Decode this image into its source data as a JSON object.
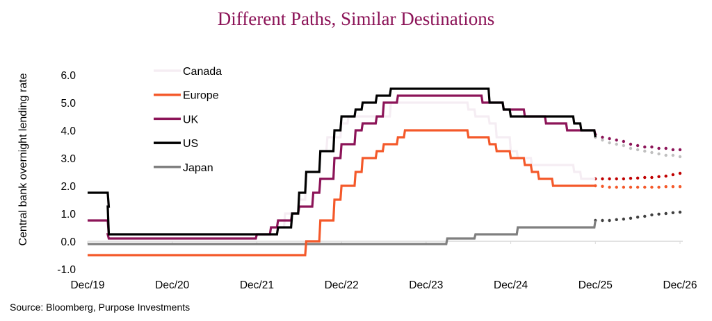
{
  "chart_data": {
    "type": "line",
    "title": "Different Paths, Similar Destinations",
    "ylabel": "Central bank overnight lending rate",
    "xlabel": "",
    "ylim": [
      -1.0,
      6.0
    ],
    "yticks": [
      "6.0",
      "5.0",
      "4.0",
      "3.0",
      "2.0",
      "1.0",
      "0.0",
      "-1.0"
    ],
    "xticks": [
      "Dec/19",
      "Dec/20",
      "Dec/21",
      "Dec/22",
      "Dec/23",
      "Dec/24",
      "Dec/25",
      "Dec/26"
    ],
    "xrange": [
      "2019-12",
      "2026-12"
    ],
    "grid": false,
    "legend_position": "top-left",
    "series": [
      {
        "name": "Canada",
        "color": "#f5edf3",
        "style": "step",
        "points": [
          [
            "2019-12",
            1.75
          ],
          [
            "2020-03",
            0.25
          ],
          [
            "2022-03",
            0.5
          ],
          [
            "2022-04",
            1.0
          ],
          [
            "2022-06",
            1.5
          ],
          [
            "2022-07",
            2.5
          ],
          [
            "2022-09",
            3.25
          ],
          [
            "2022-10",
            3.75
          ],
          [
            "2022-12",
            4.25
          ],
          [
            "2023-01",
            4.5
          ],
          [
            "2023-07",
            5.0
          ],
          [
            "2024-06",
            4.75
          ],
          [
            "2024-07",
            4.5
          ],
          [
            "2024-09",
            4.25
          ],
          [
            "2024-10",
            3.75
          ],
          [
            "2024-12",
            3.25
          ],
          [
            "2025-01",
            3.0
          ],
          [
            "2025-03",
            2.75
          ],
          [
            "2025-09",
            2.5
          ],
          [
            "2025-10",
            2.25
          ],
          [
            "2025-12",
            2.25
          ]
        ]
      },
      {
        "name": "Europe",
        "color": "#f4592a",
        "style": "step",
        "points": [
          [
            "2019-12",
            -0.5
          ],
          [
            "2022-07",
            0.0
          ],
          [
            "2022-09",
            0.75
          ],
          [
            "2022-11",
            1.5
          ],
          [
            "2022-12",
            2.0
          ],
          [
            "2023-02",
            2.5
          ],
          [
            "2023-03",
            3.0
          ],
          [
            "2023-05",
            3.25
          ],
          [
            "2023-06",
            3.5
          ],
          [
            "2023-08",
            3.75
          ],
          [
            "2023-09",
            4.0
          ],
          [
            "2024-06",
            3.75
          ],
          [
            "2024-09",
            3.5
          ],
          [
            "2024-10",
            3.25
          ],
          [
            "2024-12",
            3.0
          ],
          [
            "2025-02",
            2.75
          ],
          [
            "2025-03",
            2.5
          ],
          [
            "2025-04",
            2.25
          ],
          [
            "2025-06",
            2.0
          ],
          [
            "2025-12",
            2.0
          ]
        ]
      },
      {
        "name": "UK",
        "color": "#8c1458",
        "style": "step",
        "points": [
          [
            "2019-12",
            0.75
          ],
          [
            "2020-03",
            0.25
          ],
          [
            "2020-03",
            0.1
          ],
          [
            "2021-12",
            0.25
          ],
          [
            "2022-02",
            0.5
          ],
          [
            "2022-03",
            0.75
          ],
          [
            "2022-05",
            1.0
          ],
          [
            "2022-06",
            1.25
          ],
          [
            "2022-08",
            1.75
          ],
          [
            "2022-09",
            2.25
          ],
          [
            "2022-11",
            3.0
          ],
          [
            "2022-12",
            3.5
          ],
          [
            "2023-02",
            4.0
          ],
          [
            "2023-03",
            4.25
          ],
          [
            "2023-05",
            4.5
          ],
          [
            "2023-06",
            5.0
          ],
          [
            "2023-08",
            5.25
          ],
          [
            "2024-08",
            5.0
          ],
          [
            "2024-11",
            4.75
          ],
          [
            "2025-02",
            4.5
          ],
          [
            "2025-05",
            4.25
          ],
          [
            "2025-08",
            4.0
          ],
          [
            "2025-12",
            3.85
          ]
        ]
      },
      {
        "name": "US",
        "color": "#000000",
        "style": "step",
        "points": [
          [
            "2019-12",
            1.75
          ],
          [
            "2020-03",
            1.25
          ],
          [
            "2020-03",
            0.25
          ],
          [
            "2022-03",
            0.5
          ],
          [
            "2022-05",
            1.0
          ],
          [
            "2022-06",
            1.75
          ],
          [
            "2022-07",
            2.5
          ],
          [
            "2022-09",
            3.25
          ],
          [
            "2022-11",
            4.0
          ],
          [
            "2022-12",
            4.5
          ],
          [
            "2023-02",
            4.75
          ],
          [
            "2023-03",
            5.0
          ],
          [
            "2023-05",
            5.25
          ],
          [
            "2023-07",
            5.5
          ],
          [
            "2024-09",
            5.0
          ],
          [
            "2024-11",
            4.75
          ],
          [
            "2024-12",
            4.5
          ],
          [
            "2025-09",
            4.25
          ],
          [
            "2025-10",
            4.0
          ],
          [
            "2025-12",
            3.75
          ]
        ]
      },
      {
        "name": "Japan",
        "color": "#7f7f7f",
        "style": "step",
        "points": [
          [
            "2019-12",
            -0.1
          ],
          [
            "2024-03",
            0.1
          ],
          [
            "2024-07",
            0.25
          ],
          [
            "2025-01",
            0.5
          ],
          [
            "2025-12",
            0.75
          ]
        ]
      }
    ],
    "forecasts": [
      {
        "color": "#8c1458",
        "style": "dotted",
        "points": [
          [
            "2025-12",
            3.85
          ],
          [
            "2026-01",
            3.75
          ],
          [
            "2026-02",
            3.7
          ],
          [
            "2026-03",
            3.65
          ],
          [
            "2026-04",
            3.6
          ],
          [
            "2026-05",
            3.5
          ],
          [
            "2026-06",
            3.45
          ],
          [
            "2026-07",
            3.4
          ],
          [
            "2026-08",
            3.4
          ],
          [
            "2026-09",
            3.35
          ],
          [
            "2026-10",
            3.35
          ],
          [
            "2026-11",
            3.3
          ],
          [
            "2026-12",
            3.3
          ]
        ]
      },
      {
        "color": "#c0c0c0",
        "style": "dotted",
        "points": [
          [
            "2025-12",
            3.75
          ],
          [
            "2026-01",
            3.65
          ],
          [
            "2026-02",
            3.55
          ],
          [
            "2026-03",
            3.5
          ],
          [
            "2026-04",
            3.45
          ],
          [
            "2026-05",
            3.35
          ],
          [
            "2026-06",
            3.3
          ],
          [
            "2026-07",
            3.25
          ],
          [
            "2026-08",
            3.2
          ],
          [
            "2026-09",
            3.15
          ],
          [
            "2026-10",
            3.1
          ],
          [
            "2026-11",
            3.1
          ],
          [
            "2026-12",
            3.05
          ]
        ]
      },
      {
        "color": "#c00000",
        "style": "dotted",
        "points": [
          [
            "2025-12",
            2.25
          ],
          [
            "2026-01",
            2.25
          ],
          [
            "2026-02",
            2.25
          ],
          [
            "2026-03",
            2.25
          ],
          [
            "2026-04",
            2.25
          ],
          [
            "2026-05",
            2.27
          ],
          [
            "2026-06",
            2.28
          ],
          [
            "2026-07",
            2.3
          ],
          [
            "2026-08",
            2.3
          ],
          [
            "2026-09",
            2.33
          ],
          [
            "2026-10",
            2.35
          ],
          [
            "2026-11",
            2.4
          ],
          [
            "2026-12",
            2.45
          ]
        ]
      },
      {
        "color": "#f4592a",
        "style": "dotted",
        "points": [
          [
            "2025-12",
            2.0
          ],
          [
            "2026-01",
            1.98
          ],
          [
            "2026-02",
            1.95
          ],
          [
            "2026-03",
            1.95
          ],
          [
            "2026-04",
            1.95
          ],
          [
            "2026-05",
            1.95
          ],
          [
            "2026-06",
            1.95
          ],
          [
            "2026-07",
            1.95
          ],
          [
            "2026-08",
            1.95
          ],
          [
            "2026-09",
            1.95
          ],
          [
            "2026-10",
            1.97
          ],
          [
            "2026-11",
            1.97
          ],
          [
            "2026-12",
            1.97
          ]
        ]
      },
      {
        "color": "#404040",
        "style": "dotted",
        "points": [
          [
            "2025-12",
            0.75
          ],
          [
            "2026-01",
            0.75
          ],
          [
            "2026-02",
            0.75
          ],
          [
            "2026-03",
            0.78
          ],
          [
            "2026-04",
            0.8
          ],
          [
            "2026-05",
            0.83
          ],
          [
            "2026-06",
            0.87
          ],
          [
            "2026-07",
            0.9
          ],
          [
            "2026-08",
            0.95
          ],
          [
            "2026-09",
            0.98
          ],
          [
            "2026-10",
            1.0
          ],
          [
            "2026-11",
            1.03
          ],
          [
            "2026-12",
            1.05
          ]
        ]
      }
    ]
  },
  "source": "Source: Bloomberg, Purpose Investments"
}
